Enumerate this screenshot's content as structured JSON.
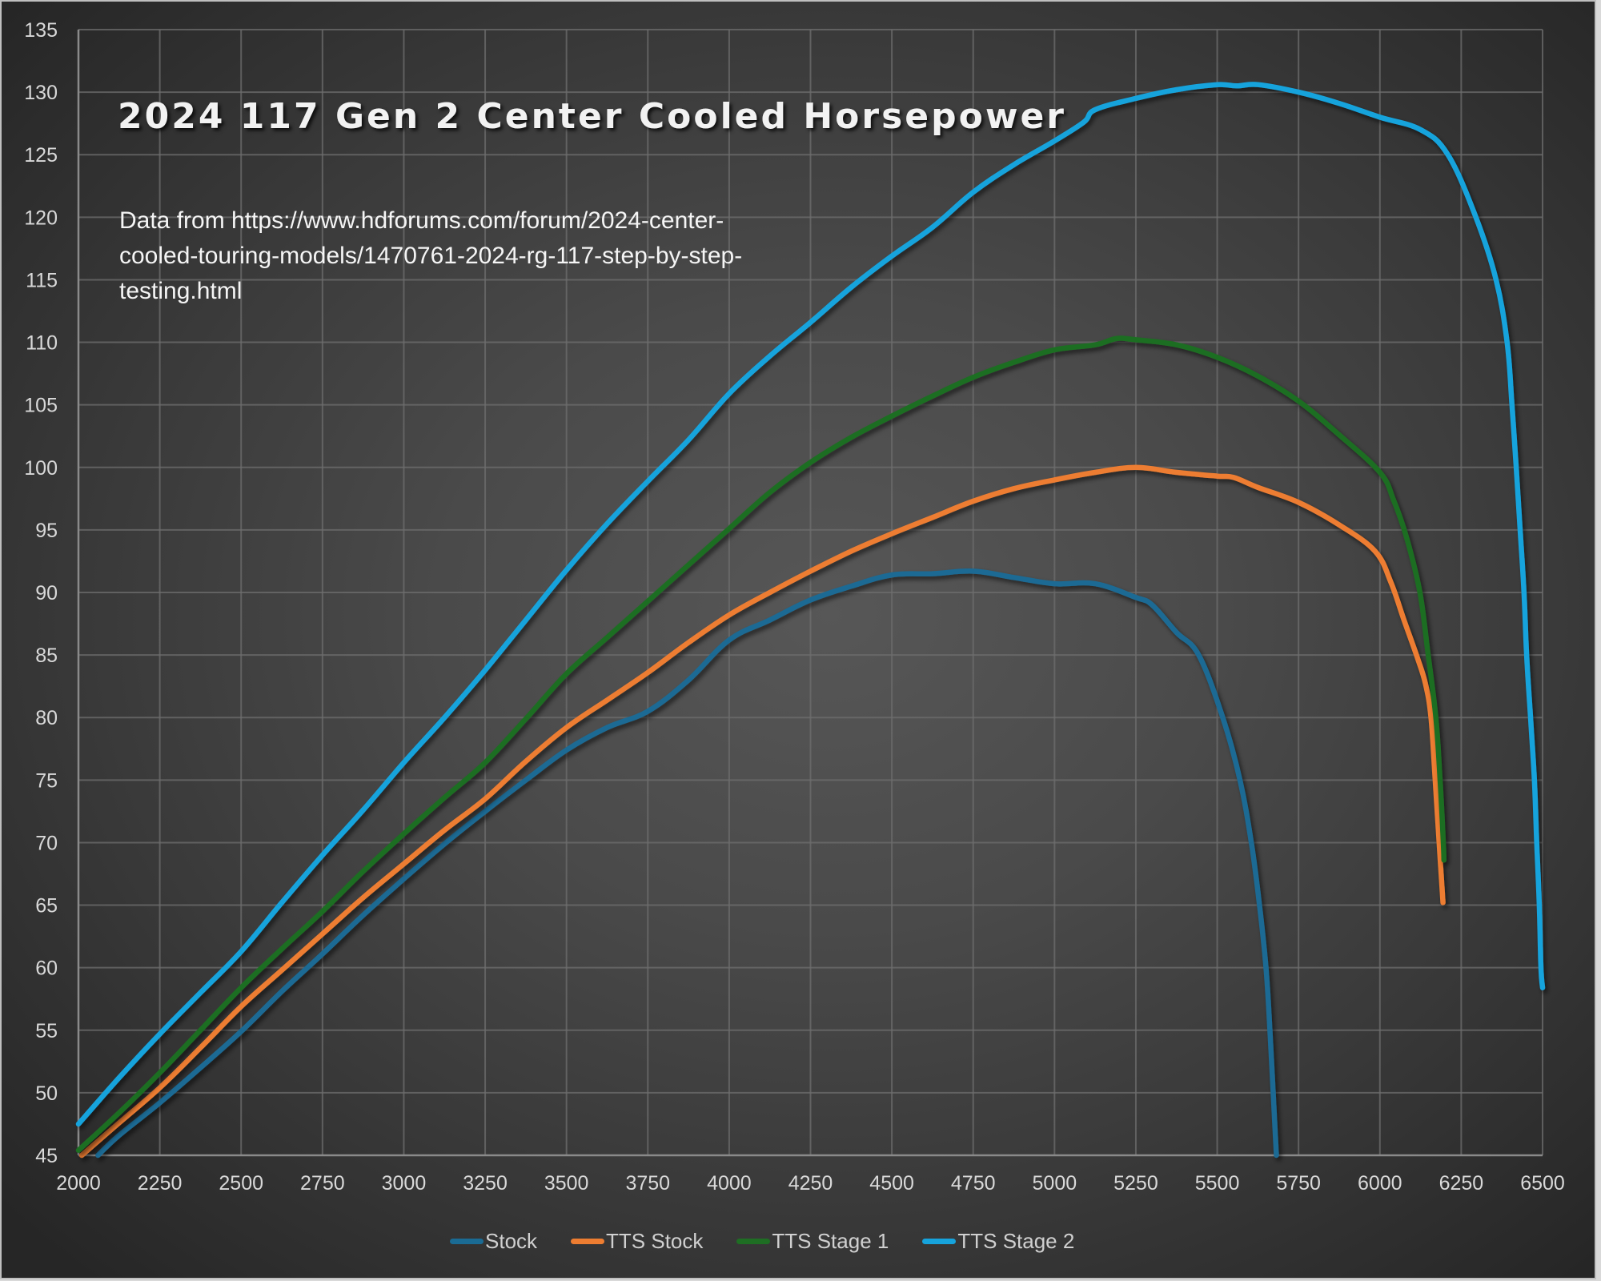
{
  "chart_data": {
    "type": "line",
    "title": "2024 117 Gen 2 Center Cooled Horsepower",
    "annotation": [
      "Data from https://www.hdforums.com/forum/2024-center-",
      "cooled-touring-models/1470761-2024-rg-117-step-by-step-",
      "testing.html"
    ],
    "xlabel": "",
    "ylabel": "",
    "xlim": [
      2000,
      6500
    ],
    "ylim": [
      45,
      135
    ],
    "x_ticks": [
      "2000",
      "2250",
      "2500",
      "2750",
      "3000",
      "3250",
      "3500",
      "3750",
      "4000",
      "4250",
      "4500",
      "4750",
      "5000",
      "5250",
      "5500",
      "5750",
      "6000",
      "6250",
      "6500"
    ],
    "y_ticks": [
      "45",
      "50",
      "55",
      "60",
      "65",
      "70",
      "75",
      "80",
      "85",
      "90",
      "95",
      "100",
      "105",
      "110",
      "115",
      "120",
      "125",
      "130",
      "135"
    ],
    "grid": true,
    "legend_position": "bottom",
    "series": [
      {
        "name": "Stock",
        "color": "#1a6b94",
        "x": [
          2060,
          2125,
          2250,
          2375,
          2500,
          2625,
          2750,
          2875,
          3000,
          3125,
          3250,
          3375,
          3500,
          3625,
          3750,
          3875,
          4000,
          4125,
          4250,
          4375,
          4500,
          4625,
          4750,
          4875,
          5000,
          5125,
          5250,
          5300,
          5375,
          5443,
          5517,
          5570,
          5605,
          5630,
          5650,
          5662,
          5672,
          5682
        ],
        "y": [
          45,
          46.6,
          49.2,
          52.0,
          54.9,
          58.1,
          61.1,
          64.2,
          67.1,
          69.9,
          72.5,
          75.0,
          77.4,
          79.2,
          80.5,
          83.0,
          86.2,
          87.8,
          89.4,
          90.5,
          91.4,
          91.5,
          91.7,
          91.2,
          90.7,
          90.7,
          89.6,
          89.0,
          86.8,
          85.0,
          80.0,
          75.0,
          70.0,
          65.0,
          60.0,
          55.0,
          50.0,
          45.0
        ]
      },
      {
        "name": "TTS Stock",
        "color": "#ed7d31",
        "x": [
          2010,
          2125,
          2250,
          2375,
          2500,
          2625,
          2750,
          2875,
          3000,
          3125,
          3250,
          3375,
          3500,
          3625,
          3750,
          3875,
          4000,
          4125,
          4250,
          4375,
          4500,
          4625,
          4750,
          4875,
          5000,
          5125,
          5250,
          5375,
          5500,
          5550,
          5625,
          5750,
          5875,
          5985,
          6034,
          6074,
          6115,
          6140,
          6157,
          6170,
          6182,
          6194
        ],
        "y": [
          45,
          47.6,
          50.4,
          53.6,
          56.9,
          59.8,
          62.7,
          65.6,
          68.3,
          71.0,
          73.5,
          76.5,
          79.2,
          81.4,
          83.6,
          86.0,
          88.2,
          90.0,
          91.7,
          93.3,
          94.7,
          96.0,
          97.3,
          98.3,
          99.0,
          99.6,
          100.0,
          99.6,
          99.3,
          99.2,
          98.4,
          97.2,
          95.4,
          93.3,
          90.8,
          87.8,
          84.8,
          82.7,
          80.0,
          75.0,
          70.0,
          65.2
        ]
      },
      {
        "name": "TTS Stage 1",
        "color": "#1e6e23",
        "x": [
          2000,
          2125,
          2250,
          2375,
          2500,
          2625,
          2750,
          2875,
          3000,
          3125,
          3250,
          3375,
          3500,
          3625,
          3750,
          3875,
          4000,
          4125,
          4250,
          4375,
          4500,
          4625,
          4750,
          4875,
          5000,
          5125,
          5190,
          5250,
          5375,
          5500,
          5625,
          5750,
          5875,
          6000,
          6042,
          6083,
          6123,
          6148,
          6172,
          6185,
          6195,
          6197
        ],
        "y": [
          45.4,
          48.4,
          51.6,
          55.0,
          58.4,
          61.5,
          64.5,
          67.7,
          70.7,
          73.6,
          76.4,
          79.9,
          83.5,
          86.4,
          89.3,
          92.2,
          95.1,
          98.0,
          100.4,
          102.4,
          104.1,
          105.7,
          107.2,
          108.4,
          109.4,
          109.8,
          110.3,
          110.2,
          109.8,
          108.8,
          107.3,
          105.3,
          102.6,
          99.6,
          97.4,
          94.3,
          90.0,
          85.1,
          80.0,
          75.0,
          70.0,
          68.6
        ]
      },
      {
        "name": "TTS Stage 2",
        "color": "#16a3dc",
        "x": [
          2000,
          2125,
          2250,
          2375,
          2500,
          2625,
          2750,
          2875,
          3000,
          3125,
          3250,
          3375,
          3500,
          3625,
          3750,
          3875,
          4000,
          4125,
          4250,
          4375,
          4500,
          4625,
          4750,
          4875,
          5000,
          5090,
          5125,
          5250,
          5375,
          5500,
          5560,
          5625,
          5750,
          5875,
          6000,
          6125,
          6209,
          6295,
          6357,
          6391,
          6406,
          6419,
          6431,
          6443,
          6451,
          6463,
          6475,
          6482,
          6490,
          6495,
          6500
        ],
        "y": [
          47.5,
          51.2,
          54.7,
          58.0,
          61.3,
          65.2,
          69.0,
          72.6,
          76.4,
          80.0,
          83.8,
          87.8,
          91.8,
          95.5,
          98.9,
          102.2,
          105.9,
          108.9,
          111.6,
          114.4,
          116.9,
          119.2,
          122.0,
          124.2,
          126.1,
          127.6,
          128.6,
          129.5,
          130.2,
          130.6,
          130.5,
          130.6,
          130.0,
          129.1,
          128.0,
          127.0,
          125.0,
          120.0,
          115.0,
          110.0,
          105.0,
          100.0,
          95.0,
          90.0,
          85.0,
          80.0,
          75.0,
          70.0,
          65.0,
          60.0,
          58.4
        ]
      }
    ]
  }
}
